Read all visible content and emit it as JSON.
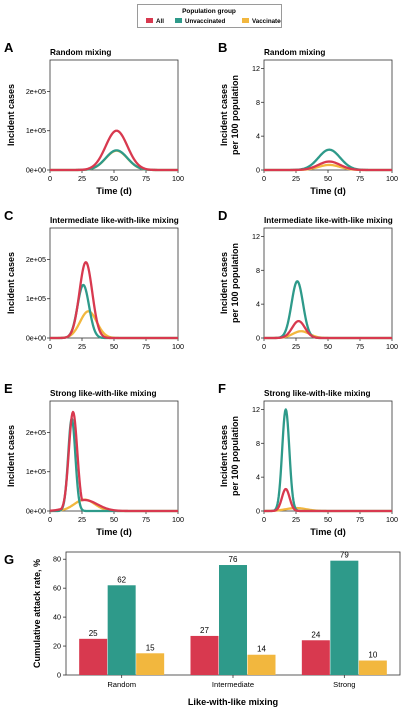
{
  "legend": {
    "title": "Population group",
    "entries": [
      {
        "name": "All",
        "color": "#d8394f"
      },
      {
        "name": "Unvaccinated",
        "color": "#2e9a8a"
      },
      {
        "name": "Vaccinated",
        "color": "#f2b73e"
      }
    ]
  },
  "chart_data": [
    {
      "panel": "A",
      "type": "line",
      "title": "Random mixing",
      "xlabel": "Time (d)",
      "ylabel": "Incident cases",
      "xlim": [
        0,
        100
      ],
      "xticks": [
        0,
        25,
        50,
        75,
        100
      ],
      "ylim": [
        0,
        280000
      ],
      "yticks": [
        0,
        100000,
        200000
      ],
      "ytick_labels": [
        "0e+00",
        "1e+05",
        "2e+05"
      ],
      "series": [
        {
          "name": "All",
          "color": "#d8394f",
          "peak_x": 52,
          "peak_y": 100000,
          "sd": 8.5
        },
        {
          "name": "Unvaccinated",
          "color": "#2e9a8a",
          "peak_x": 52,
          "peak_y": 50000,
          "sd": 8.5
        },
        {
          "name": "Vaccinated",
          "color": "#f2b73e",
          "peak_x": 52,
          "peak_y": 49000,
          "sd": 8.5
        }
      ]
    },
    {
      "panel": "B",
      "type": "line",
      "title": "Random mixing",
      "xlabel": "Time (d)",
      "ylabel": "Incident cases per 100 population",
      "xlim": [
        0,
        100
      ],
      "xticks": [
        0,
        25,
        50,
        75,
        100
      ],
      "ylim": [
        0,
        13
      ],
      "yticks": [
        0,
        4,
        8,
        12
      ],
      "ytick_labels": [
        "0",
        "4",
        "8",
        "12"
      ],
      "series": [
        {
          "name": "All",
          "color": "#d8394f",
          "peak_x": 51,
          "peak_y": 1.0,
          "sd": 8.5
        },
        {
          "name": "Unvaccinated",
          "color": "#2e9a8a",
          "peak_x": 51,
          "peak_y": 2.4,
          "sd": 8.5
        },
        {
          "name": "Vaccinated",
          "color": "#f2b73e",
          "peak_x": 51,
          "peak_y": 0.6,
          "sd": 8.5
        }
      ]
    },
    {
      "panel": "C",
      "type": "line",
      "title": "Intermediate like-with-like mixing",
      "xlabel": "",
      "ylabel": "Incident cases",
      "xlim": [
        0,
        100
      ],
      "xticks": [
        0,
        25,
        50,
        75,
        100
      ],
      "ylim": [
        0,
        280000
      ],
      "yticks": [
        0,
        100000,
        200000
      ],
      "ytick_labels": [
        "0e+00",
        "1e+05",
        "2e+05"
      ],
      "series": [
        {
          "name": "All",
          "color": "#d8394f",
          "peak_x": 28,
          "peak_y": 193000,
          "sd": 5.0
        },
        {
          "name": "Unvaccinated",
          "color": "#2e9a8a",
          "peak_x": 26,
          "peak_y": 135000,
          "sd": 4.5
        },
        {
          "name": "Vaccinated",
          "color": "#f2b73e",
          "peak_x": 30,
          "peak_y": 68000,
          "sd": 6.5
        }
      ]
    },
    {
      "panel": "D",
      "type": "line",
      "title": "Intermediate like-with-like mixing",
      "xlabel": "",
      "ylabel": "Incident cases per 100 population",
      "xlim": [
        0,
        100
      ],
      "xticks": [
        0,
        25,
        50,
        75,
        100
      ],
      "ylim": [
        0,
        13
      ],
      "yticks": [
        0,
        4,
        8,
        12
      ],
      "ytick_labels": [
        "0",
        "4",
        "8",
        "12"
      ],
      "series": [
        {
          "name": "All",
          "color": "#d8394f",
          "peak_x": 27,
          "peak_y": 2.0,
          "sd": 5.0
        },
        {
          "name": "Unvaccinated",
          "color": "#2e9a8a",
          "peak_x": 26,
          "peak_y": 6.7,
          "sd": 4.5
        },
        {
          "name": "Vaccinated",
          "color": "#f2b73e",
          "peak_x": 29,
          "peak_y": 0.8,
          "sd": 6.5
        }
      ]
    },
    {
      "panel": "E",
      "type": "line",
      "title": "Strong like-with-like mixing",
      "xlabel": "Time (d)",
      "ylabel": "Incident cases",
      "xlim": [
        0,
        100
      ],
      "xticks": [
        0,
        25,
        50,
        75,
        100
      ],
      "ylim": [
        0,
        280000
      ],
      "yticks": [
        0,
        100000,
        200000
      ],
      "ytick_labels": [
        "0e+00",
        "1e+05",
        "2e+05"
      ],
      "series": [
        {
          "name": "All",
          "color": "#d8394f",
          "peak_x": 18,
          "peak_y": 252000,
          "sd": 3.3,
          "tail_y": 28000,
          "tail_x": 27,
          "tail_sd": 10
        },
        {
          "name": "Unvaccinated",
          "color": "#2e9a8a",
          "peak_x": 17,
          "peak_y": 235000,
          "sd": 2.8
        },
        {
          "name": "Vaccinated",
          "color": "#f2b73e",
          "peak_x": 27,
          "peak_y": 29000,
          "sd": 8.0
        }
      ]
    },
    {
      "panel": "F",
      "type": "line",
      "title": "Strong like-with-like mixing",
      "xlabel": "Time (d)",
      "ylabel": "Incident cases per 100 population",
      "xlim": [
        0,
        100
      ],
      "xticks": [
        0,
        25,
        50,
        75,
        100
      ],
      "ylim": [
        0,
        13
      ],
      "yticks": [
        0,
        4,
        8,
        12
      ],
      "ytick_labels": [
        "0",
        "4",
        "8",
        "12"
      ],
      "series": [
        {
          "name": "All",
          "color": "#d8394f",
          "peak_x": 17,
          "peak_y": 2.6,
          "sd": 3.0
        },
        {
          "name": "Unvaccinated",
          "color": "#2e9a8a",
          "peak_x": 17,
          "peak_y": 12.0,
          "sd": 2.8
        },
        {
          "name": "Vaccinated",
          "color": "#f2b73e",
          "peak_x": 25,
          "peak_y": 0.35,
          "sd": 8.0
        }
      ]
    },
    {
      "panel": "G",
      "type": "bar",
      "title": "",
      "xlabel": "Like-with-like mixing",
      "ylabel": "Cumulative attack rate, %",
      "ylim": [
        0,
        85
      ],
      "yticks": [
        0,
        20,
        40,
        60,
        80
      ],
      "ytick_labels": [
        "0",
        "20",
        "40",
        "60",
        "80"
      ],
      "categories": [
        "Random",
        "Intermediate",
        "Strong"
      ],
      "series": [
        {
          "name": "All",
          "color": "#d8394f",
          "values": [
            25,
            27,
            24
          ]
        },
        {
          "name": "Unvaccinated",
          "color": "#2e9a8a",
          "values": [
            62,
            76,
            79
          ]
        },
        {
          "name": "Vaccinated",
          "color": "#f2b73e",
          "values": [
            15,
            14,
            10
          ]
        }
      ]
    }
  ]
}
